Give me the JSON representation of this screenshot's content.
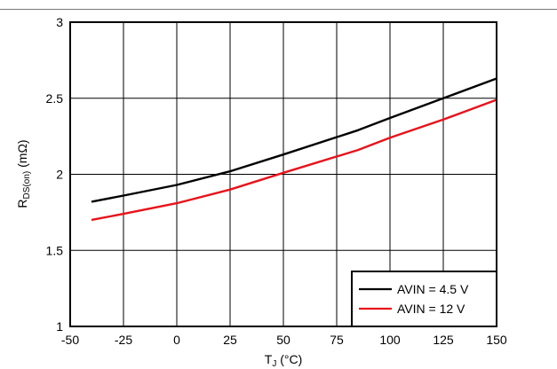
{
  "chart_data": {
    "type": "line",
    "title": "",
    "xlabel": "T_J (°C)",
    "xlabel_main": "T",
    "xlabel_sub": "J",
    "xlabel_rest": " (°C)",
    "ylabel": "R_DS(on) (mΩ)",
    "ylabel_main": "R",
    "ylabel_sub": "DS(on)",
    "ylabel_rest": " (mΩ)",
    "xlim": [
      -50,
      150
    ],
    "ylim": [
      1,
      3
    ],
    "x_ticks": [
      -50,
      -25,
      0,
      25,
      50,
      75,
      100,
      125,
      150
    ],
    "x_tick_labels": [
      "-50",
      "-25",
      "0",
      "25",
      "50",
      "75",
      "100",
      "125",
      "150"
    ],
    "y_ticks": [
      1,
      1.5,
      2,
      2.5,
      3
    ],
    "y_tick_labels": [
      "1",
      "1.5",
      "2",
      "2.5",
      "3"
    ],
    "grid": true,
    "legend_position": "bottom-right",
    "series": [
      {
        "name": "AVIN = 4.5 V",
        "color": "#000000",
        "x": [
          -40,
          -25,
          0,
          25,
          50,
          85,
          100,
          125,
          150
        ],
        "y": [
          1.82,
          1.86,
          1.93,
          2.02,
          2.13,
          2.29,
          2.37,
          2.5,
          2.63
        ]
      },
      {
        "name": "AVIN = 12 V",
        "color": "#e8121a",
        "x": [
          -40,
          -25,
          0,
          25,
          50,
          85,
          100,
          125,
          150
        ],
        "y": [
          1.7,
          1.74,
          1.81,
          1.9,
          2.01,
          2.16,
          2.24,
          2.36,
          2.49
        ]
      }
    ]
  }
}
